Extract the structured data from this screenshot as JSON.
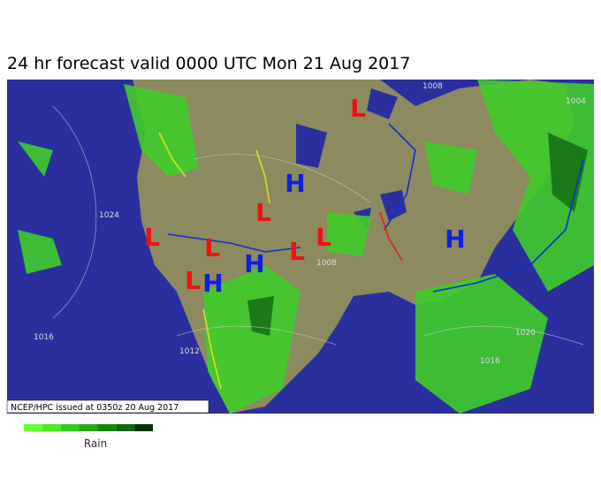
{
  "title": "24 hr forecast valid 0000 UTC Mon 21 Aug 2017",
  "issued": "NCEP/HPC issued at 0350z  20 Aug 2017",
  "legend": {
    "label": "Rain",
    "colors": [
      "#66ff33",
      "#44ee22",
      "#33cc22",
      "#22aa11",
      "#118811",
      "#116611",
      "#003300"
    ]
  },
  "high_color": "#1020e0",
  "low_color": "#ee1111",
  "pressure_centers": [
    "L",
    "H",
    "L",
    "L",
    "L",
    "L",
    "L",
    "H",
    "H",
    "L",
    "H"
  ],
  "isobar_labels": [
    "1024",
    "1016",
    "1012",
    "1020",
    "1016",
    "1008",
    "1004",
    "1008"
  ]
}
